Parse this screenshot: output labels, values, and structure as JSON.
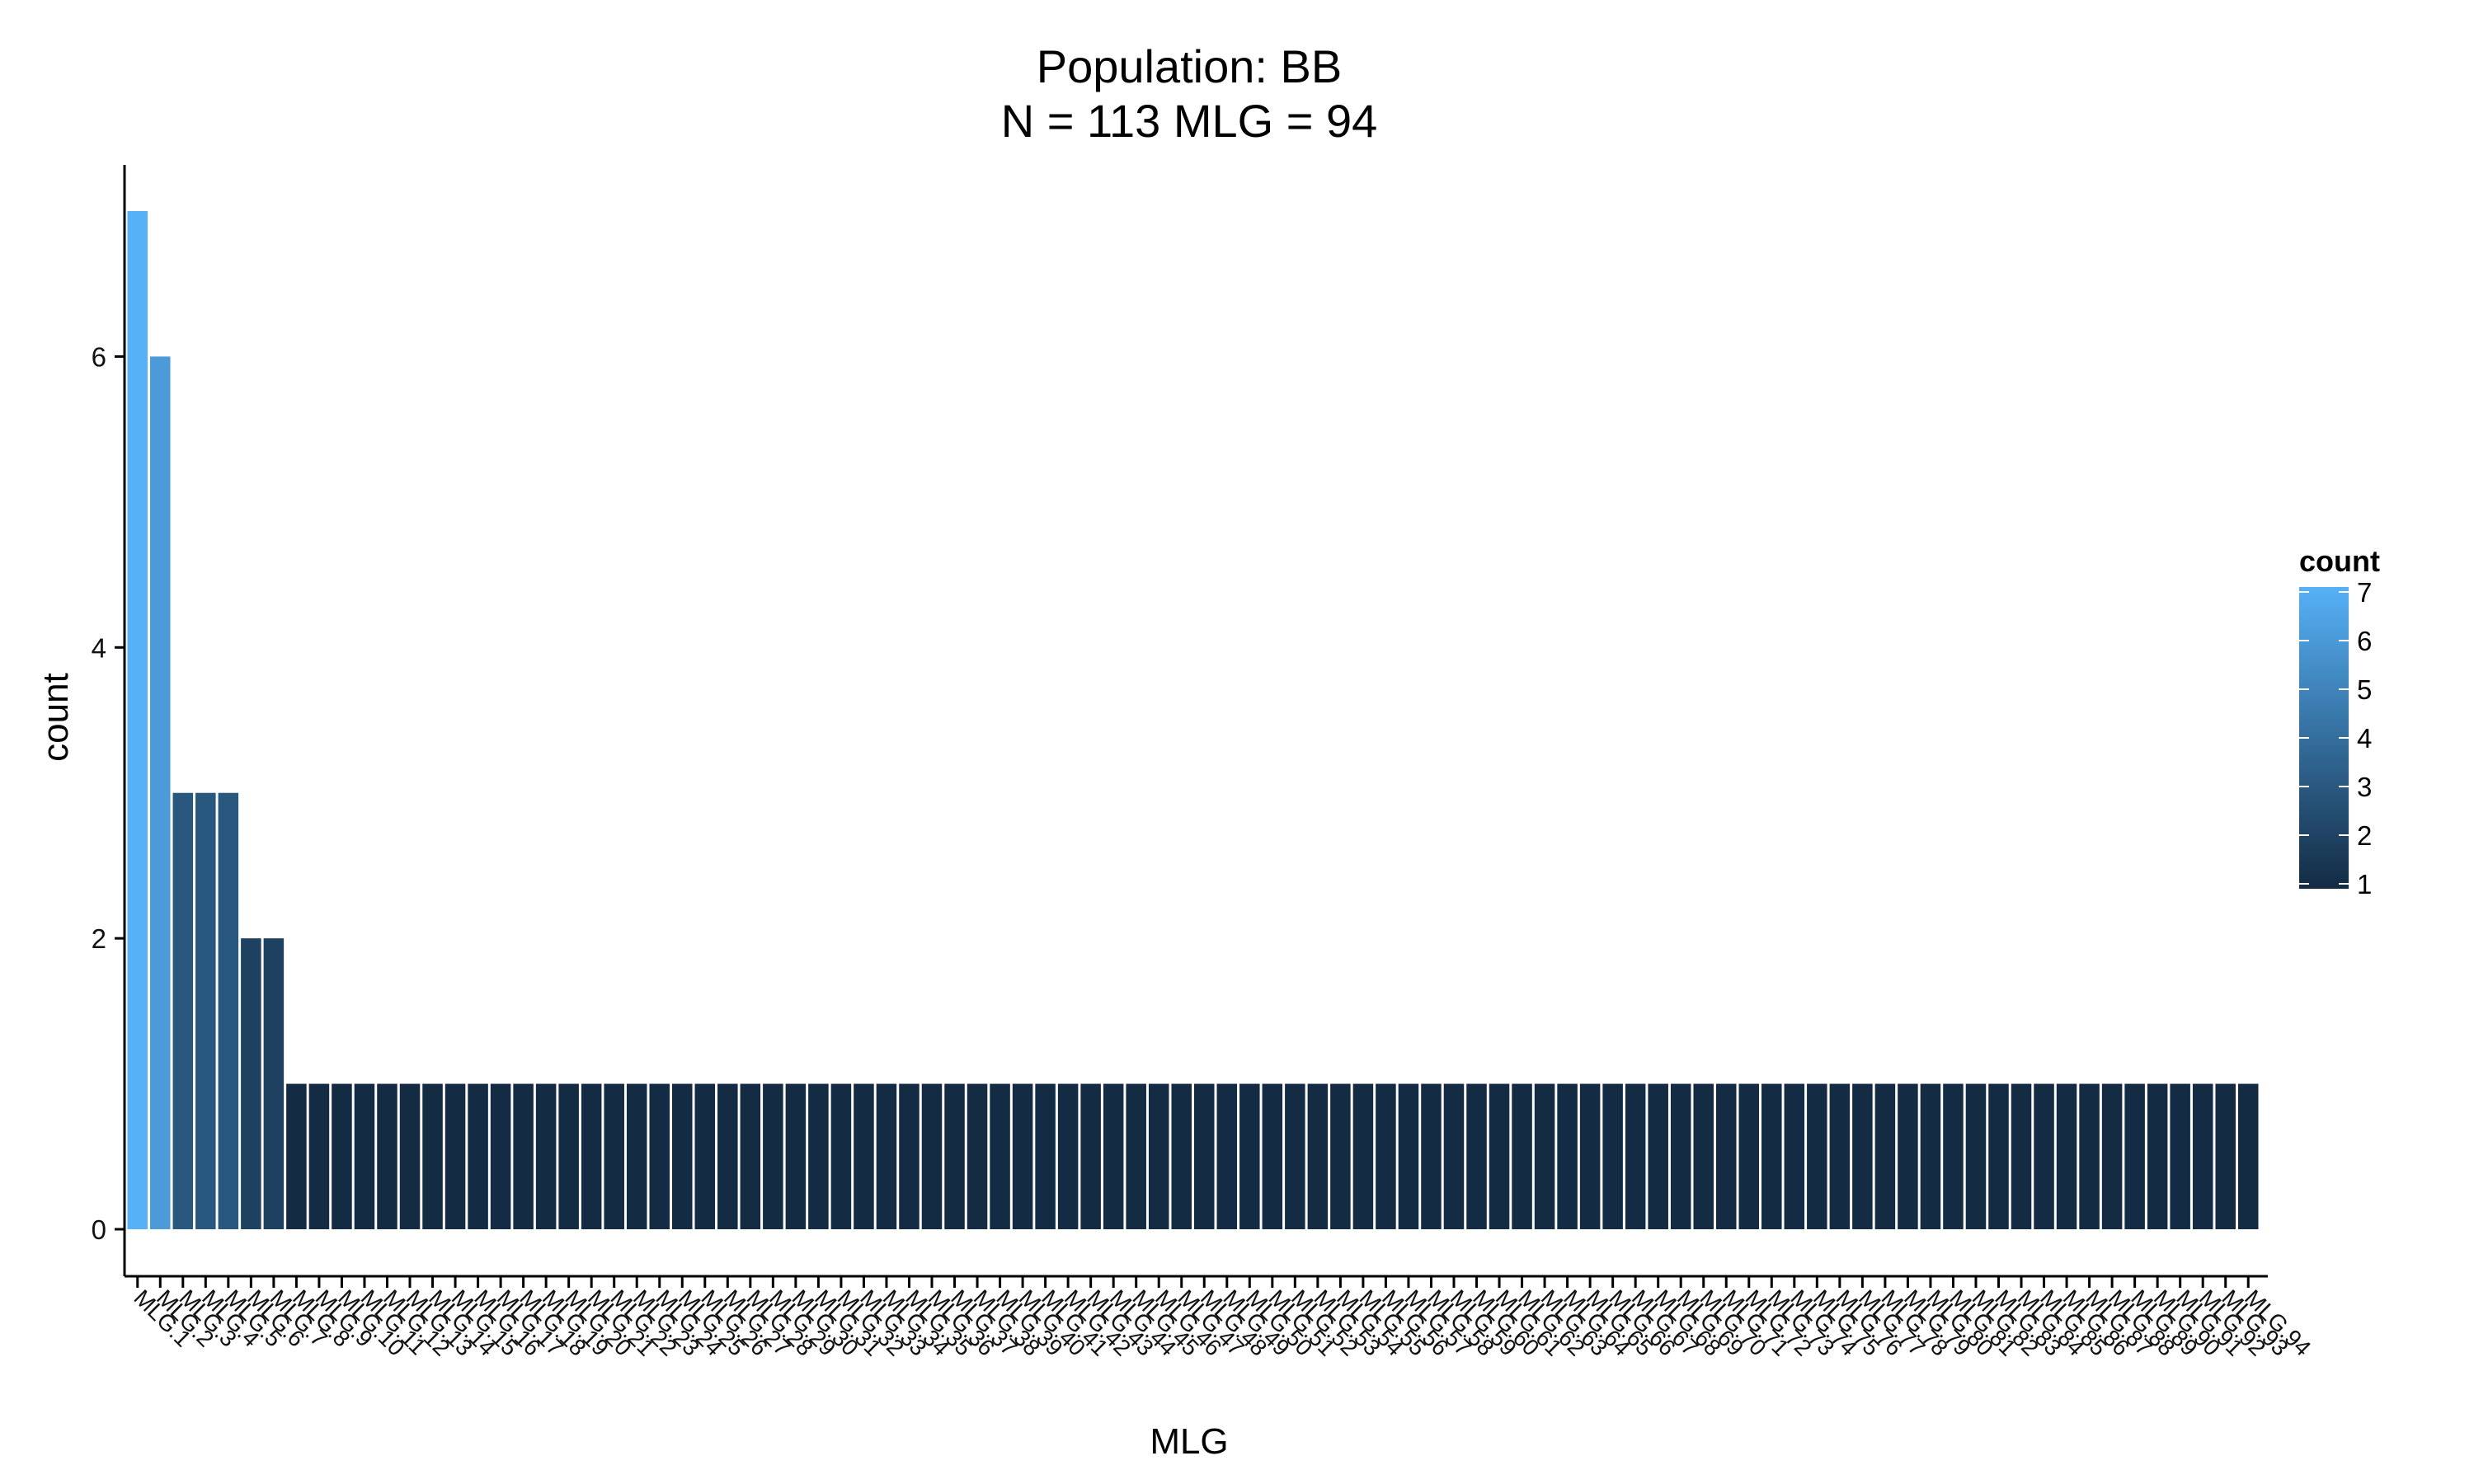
{
  "chart_data": {
    "type": "bar",
    "title": "Population: BB",
    "subtitle": "N = 113 MLG = 94",
    "xlabel": "MLG",
    "ylabel": "count",
    "ylim": [
      0,
      7
    ],
    "yticks": [
      0,
      2,
      4,
      6
    ],
    "grid": false,
    "legend": {
      "title": "count",
      "position": "right",
      "ticks": [
        1,
        2,
        3,
        4,
        5,
        6,
        7
      ],
      "color_low": "#132B43",
      "color_high": "#56B1F7"
    },
    "categories": [
      "MLG.1",
      "MLG.2",
      "MLG.3",
      "MLG.4",
      "MLG.5",
      "MLG.6",
      "MLG.7",
      "MLG.8",
      "MLG.9",
      "MLG.10",
      "MLG.11",
      "MLG.12",
      "MLG.13",
      "MLG.14",
      "MLG.15",
      "MLG.16",
      "MLG.17",
      "MLG.18",
      "MLG.19",
      "MLG.20",
      "MLG.21",
      "MLG.22",
      "MLG.23",
      "MLG.24",
      "MLG.25",
      "MLG.26",
      "MLG.27",
      "MLG.28",
      "MLG.29",
      "MLG.30",
      "MLG.31",
      "MLG.32",
      "MLG.33",
      "MLG.34",
      "MLG.35",
      "MLG.36",
      "MLG.37",
      "MLG.38",
      "MLG.39",
      "MLG.40",
      "MLG.41",
      "MLG.42",
      "MLG.43",
      "MLG.44",
      "MLG.45",
      "MLG.46",
      "MLG.47",
      "MLG.48",
      "MLG.49",
      "MLG.50",
      "MLG.51",
      "MLG.52",
      "MLG.53",
      "MLG.54",
      "MLG.55",
      "MLG.56",
      "MLG.57",
      "MLG.58",
      "MLG.59",
      "MLG.60",
      "MLG.61",
      "MLG.62",
      "MLG.63",
      "MLG.64",
      "MLG.65",
      "MLG.66",
      "MLG.67",
      "MLG.68",
      "MLG.69",
      "MLG.70",
      "MLG.71",
      "MLG.72",
      "MLG.73",
      "MLG.74",
      "MLG.75",
      "MLG.76",
      "MLG.77",
      "MLG.78",
      "MLG.79",
      "MLG.80",
      "MLG.81",
      "MLG.82",
      "MLG.83",
      "MLG.84",
      "MLG.85",
      "MLG.86",
      "MLG.87",
      "MLG.88",
      "MLG.89",
      "MLG.90",
      "MLG.91",
      "MLG.92",
      "MLG.93",
      "MLG.94"
    ],
    "values": [
      7,
      6,
      3,
      3,
      3,
      2,
      2,
      1,
      1,
      1,
      1,
      1,
      1,
      1,
      1,
      1,
      1,
      1,
      1,
      1,
      1,
      1,
      1,
      1,
      1,
      1,
      1,
      1,
      1,
      1,
      1,
      1,
      1,
      1,
      1,
      1,
      1,
      1,
      1,
      1,
      1,
      1,
      1,
      1,
      1,
      1,
      1,
      1,
      1,
      1,
      1,
      1,
      1,
      1,
      1,
      1,
      1,
      1,
      1,
      1,
      1,
      1,
      1,
      1,
      1,
      1,
      1,
      1,
      1,
      1,
      1,
      1,
      1,
      1,
      1,
      1,
      1,
      1,
      1,
      1,
      1,
      1,
      1,
      1,
      1,
      1,
      1,
      1,
      1,
      1,
      1,
      1,
      1,
      1
    ]
  }
}
